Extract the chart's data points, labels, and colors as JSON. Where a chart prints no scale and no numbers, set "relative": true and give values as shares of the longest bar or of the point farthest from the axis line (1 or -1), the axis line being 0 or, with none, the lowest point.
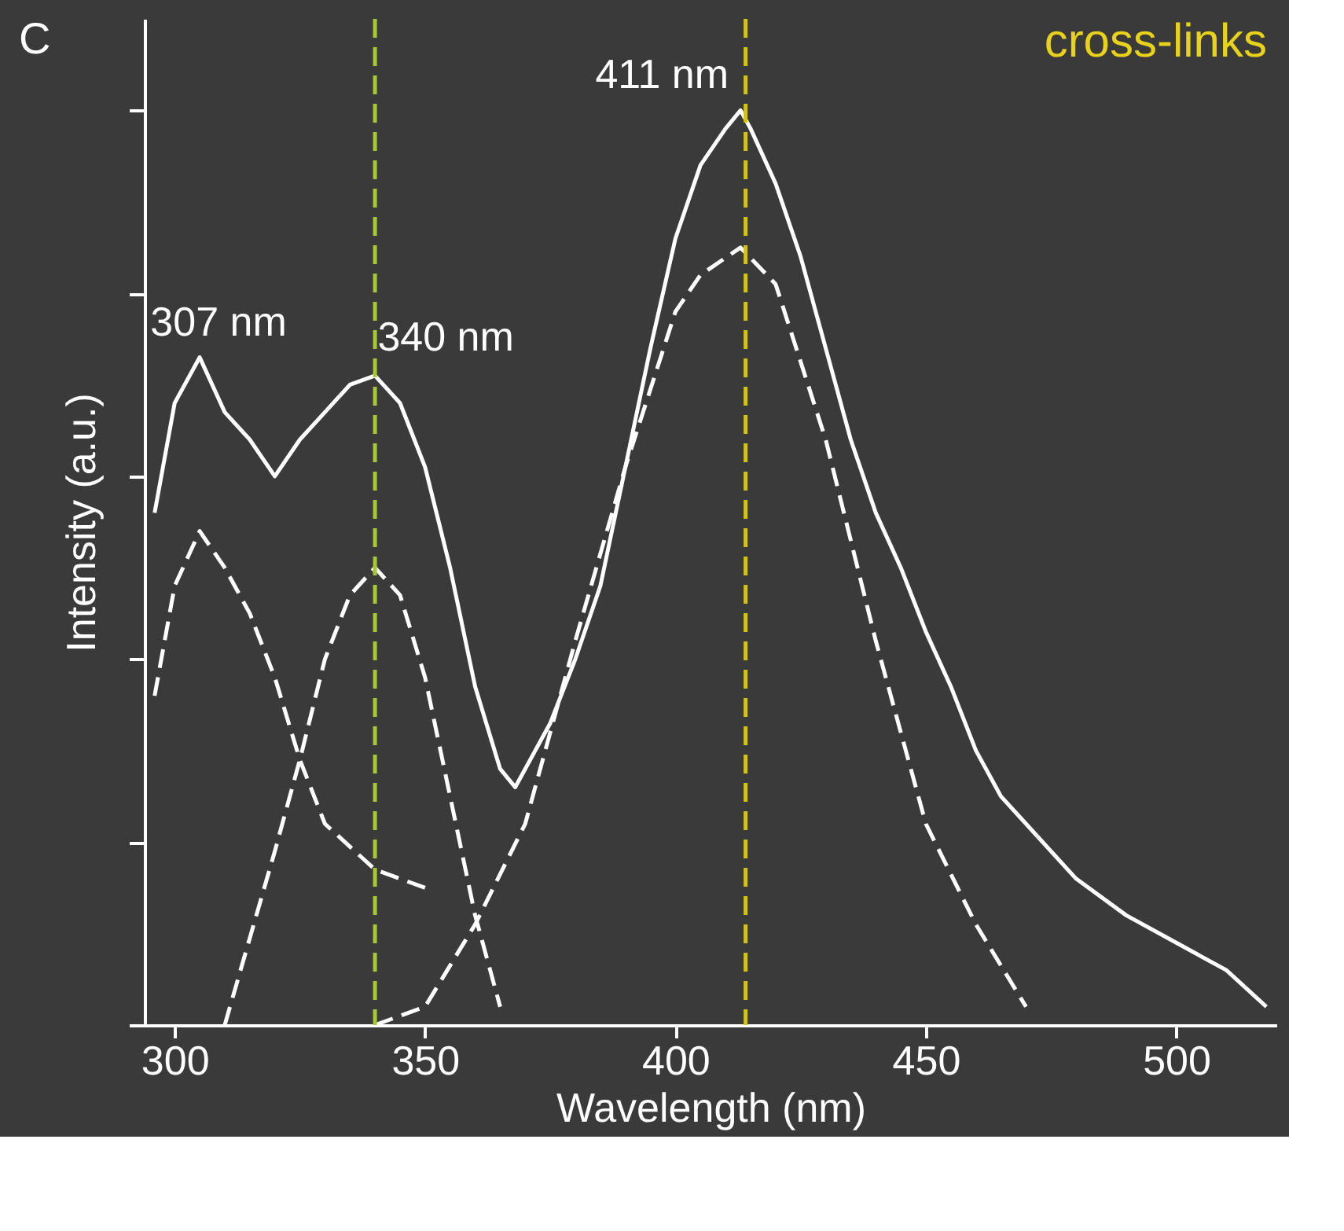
{
  "chart_data": {
    "type": "line",
    "relative": true,
    "xlabel": "Wavelength (nm)",
    "ylabel": "Intensity (a.u.)",
    "xlim": [
      294,
      520
    ],
    "xticks": [
      300,
      350,
      400,
      450,
      500
    ],
    "grid": false,
    "series": [
      {
        "color": "#ffffff",
        "line_style": "solid",
        "x": [
          296,
          300,
          305,
          310,
          315,
          320,
          325,
          330,
          335,
          340,
          345,
          350,
          355,
          360,
          365,
          368,
          372,
          375,
          380,
          385,
          390,
          395,
          400,
          405,
          410,
          413,
          415,
          420,
          425,
          430,
          435,
          440,
          445,
          450,
          455,
          460,
          465,
          470,
          480,
          490,
          500,
          510,
          518
        ],
        "values": [
          0.56,
          0.68,
          0.73,
          0.67,
          0.64,
          0.6,
          0.64,
          0.67,
          0.7,
          0.71,
          0.68,
          0.61,
          0.5,
          0.37,
          0.28,
          0.26,
          0.3,
          0.33,
          0.4,
          0.48,
          0.61,
          0.74,
          0.86,
          0.94,
          0.98,
          1.0,
          0.98,
          0.92,
          0.84,
          0.74,
          0.64,
          0.56,
          0.5,
          0.43,
          0.37,
          0.3,
          0.25,
          0.22,
          0.16,
          0.12,
          0.09,
          0.06,
          0.02
        ]
      },
      {
        "color": "#ffffff",
        "line_style": "dashed",
        "x": [
          296,
          300,
          305,
          310,
          315,
          320,
          325,
          330,
          340,
          350
        ],
        "values": [
          0.36,
          0.48,
          0.54,
          0.5,
          0.45,
          0.38,
          0.29,
          0.22,
          0.17,
          0.15
        ]
      },
      {
        "color": "#ffffff",
        "line_style": "dashed",
        "x": [
          310,
          320,
          325,
          330,
          335,
          340,
          345,
          350,
          355,
          360,
          365
        ],
        "values": [
          0.0,
          0.19,
          0.29,
          0.4,
          0.47,
          0.5,
          0.47,
          0.38,
          0.25,
          0.12,
          0.02
        ]
      },
      {
        "color": "#ffffff",
        "line_style": "dashed",
        "x": [
          340,
          350,
          360,
          370,
          380,
          390,
          400,
          405,
          413,
          420,
          430,
          440,
          450,
          460,
          470
        ],
        "values": [
          0.0,
          0.02,
          0.11,
          0.22,
          0.42,
          0.61,
          0.78,
          0.82,
          0.85,
          0.81,
          0.64,
          0.42,
          0.22,
          0.11,
          0.02
        ]
      }
    ],
    "ref_lines": [
      {
        "axis": "x",
        "value": 340,
        "color": "#a6c832",
        "line_style": "dashed"
      },
      {
        "axis": "x",
        "value": 414,
        "color": "#d4c21a",
        "line_style": "dashed"
      }
    ],
    "annotations": [
      {
        "text": "307 nm",
        "x": 305,
        "y": 0.73
      },
      {
        "text": "340 nm",
        "x": 340,
        "y": 0.71
      },
      {
        "text": "411 nm",
        "x": 413,
        "y": 1.0
      },
      "C",
      "cross-links"
    ]
  }
}
